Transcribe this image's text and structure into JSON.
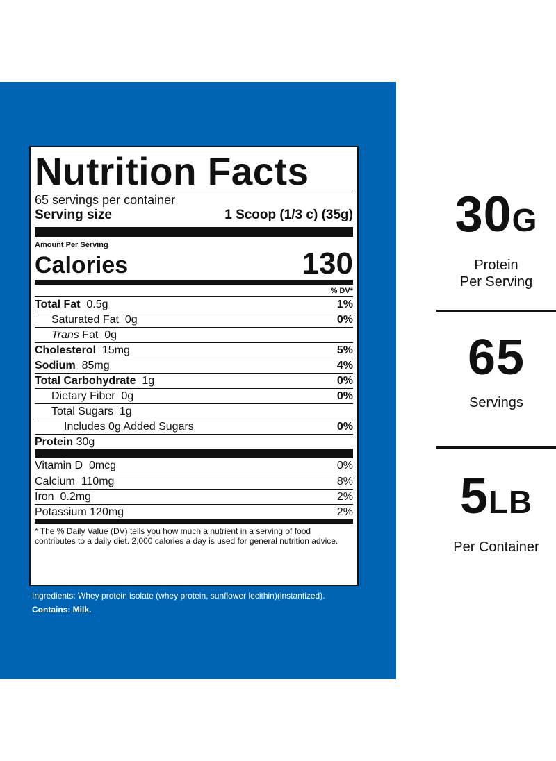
{
  "label": {
    "title": "Nutrition Facts",
    "servings": "65 servings per container",
    "serving_size_label": "Serving size",
    "serving_size_value": "1 Scoop (1/3 c) (35g)",
    "amount_per_serving": "Amount Per Serving",
    "calories_label": "Calories",
    "calories_value": "130",
    "dv_header": "% DV*",
    "nutrients": [
      {
        "name": "Total Fat",
        "amount": "0.5g",
        "dv": "1%"
      },
      {
        "name": "Saturated Fat",
        "amount": "0g",
        "dv": "0%"
      },
      {
        "name": "Trans",
        "name_suffix": "Fat",
        "amount": "0g",
        "dv": ""
      },
      {
        "name": "Cholesterol",
        "amount": "15mg",
        "dv": "5%"
      },
      {
        "name": "Sodium",
        "amount": "85mg",
        "dv": "4%"
      },
      {
        "name": "Total Carbohydrate",
        "amount": "1g",
        "dv": "0%"
      },
      {
        "name": "Dietary Fiber",
        "amount": "0g",
        "dv": "0%"
      },
      {
        "name": "Total Sugars",
        "amount": "1g",
        "dv": ""
      },
      {
        "name": "Includes 0g Added Sugars",
        "amount": "",
        "dv": "0%"
      },
      {
        "name": "Protein",
        "amount": "30g",
        "dv": ""
      }
    ],
    "vitamins": [
      {
        "name": "Vitamin D",
        "amount": "0mcg",
        "dv": "0%"
      },
      {
        "name": "Calcium",
        "amount": "110mg",
        "dv": "8%"
      },
      {
        "name": "Iron",
        "amount": "0.2mg",
        "dv": "2%"
      },
      {
        "name": "Potassium",
        "amount": "120mg",
        "dv": "2%"
      }
    ],
    "footnote": "* The % Daily Value (DV) tells you how much a nutrient in a serving of food contributes to a daily diet. 2,000 calories a day is used for general nutrition advice."
  },
  "ingredients": {
    "text": "Ingredients: Whey protein isolate (whey protein, sunflower lecithin)(instantized).",
    "contains": "Contains: Milk."
  },
  "stats": [
    {
      "value": "30",
      "unit": "G",
      "caption_line1": "Protein",
      "caption_line2": "Per Serving"
    },
    {
      "value": "65",
      "unit": "",
      "caption_line1": "Servings",
      "caption_line2": ""
    },
    {
      "value": "5",
      "unit": "LB",
      "caption_line1": "Per Container",
      "caption_line2": ""
    }
  ],
  "colors": {
    "panel": "#0064b4",
    "text": "#111111"
  }
}
